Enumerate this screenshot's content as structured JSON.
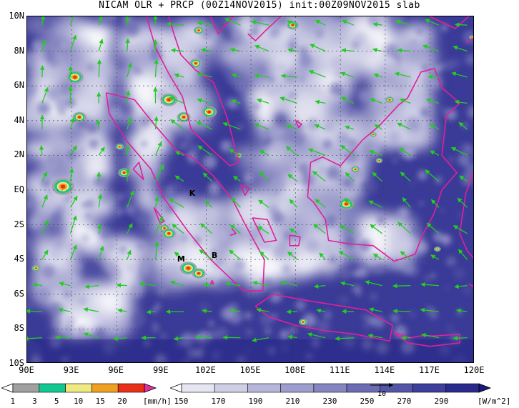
{
  "title": "NICAM OLR + PRCP (00Z14NOV2015) init:00Z09NOV2015 slab",
  "map": {
    "lon_range": [
      90,
      120
    ],
    "lat_range": [
      -10,
      10
    ],
    "x_ticks": [
      "90E",
      "93E",
      "96E",
      "99E",
      "102E",
      "105E",
      "108E",
      "111E",
      "114E",
      "117E",
      "120E"
    ],
    "y_ticks": [
      "10N",
      "8N",
      "6N",
      "4N",
      "2N",
      "EQ",
      "2S",
      "4S",
      "6S",
      "8S",
      "10S"
    ],
    "grid": true,
    "place_labels": [
      {
        "text": "K",
        "lon": 101.1,
        "lat": -0.2
      },
      {
        "text": "B",
        "lon": 102.6,
        "lat": -3.8
      },
      {
        "text": "M",
        "lon": 100.3,
        "lat": -4.0
      }
    ],
    "colors": {
      "coastline": "#e0209a",
      "wind_vectors": "#22cc22",
      "olr_low": "#ffffff",
      "olr_high": "#1a1a7a"
    }
  },
  "precip_colorbar": {
    "labels": [
      "1",
      "3",
      "5",
      "10",
      "15",
      "20"
    ],
    "unit": "[mm/h]",
    "colors": [
      "#ffffff",
      "#a0a0a0",
      "#10c890",
      "#f0e880",
      "#f0a020",
      "#e83018",
      "#e030a0"
    ]
  },
  "olr_colorbar": {
    "labels": [
      "150",
      "170",
      "190",
      "210",
      "230",
      "250",
      "270",
      "290"
    ],
    "unit": "[W/m^2]",
    "vector_key": "10",
    "colors": [
      "#ffffff",
      "#e6e6f2",
      "#cfcfe6",
      "#b6b6da",
      "#9d9dcd",
      "#8585c2",
      "#6c6cb5",
      "#5555a8",
      "#3e3e9c",
      "#2a2a8c",
      "#1a1a7a"
    ]
  }
}
